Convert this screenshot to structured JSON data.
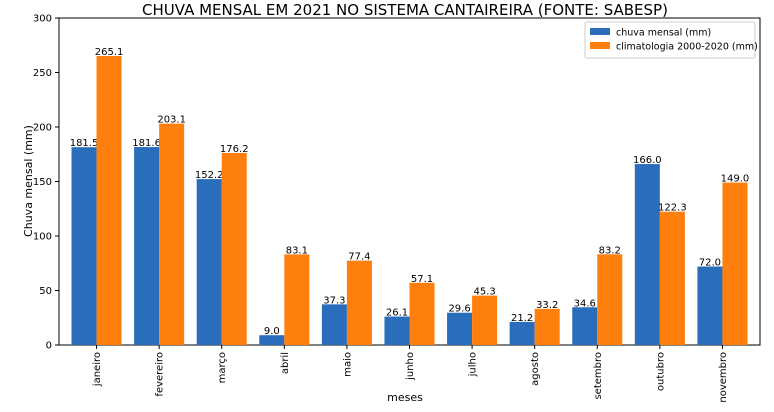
{
  "chart_data": {
    "type": "bar",
    "title": "CHUVA MENSAL EM 2021 NO SISTEMA CANTAIREIRA (FONTE: SABESP)",
    "xlabel": "meses",
    "ylabel": "Chuva mensal (mm)",
    "ylim": [
      0,
      300
    ],
    "yticks": [
      0,
      50,
      100,
      150,
      200,
      250,
      300
    ],
    "categories": [
      "janeiro",
      "fevereiro",
      "março",
      "abril",
      "maio",
      "junho",
      "julho",
      "agosto",
      "setembro",
      "outubro",
      "novembro"
    ],
    "series": [
      {
        "name": "chuva mensal (mm)",
        "color": "#2a6ebb",
        "values": [
          181.5,
          181.6,
          152.2,
          9.0,
          37.3,
          26.1,
          29.6,
          21.2,
          34.6,
          166.0,
          72.0
        ],
        "labels": [
          "181.5",
          "181.6",
          "152.2",
          "9.0",
          "37.3",
          "26.1",
          "29.6",
          "21.2",
          "34.6",
          "166.0",
          "72.0"
        ]
      },
      {
        "name": "climatologia 2000-2020 (mm)",
        "color": "#ff7f0e",
        "values": [
          265.1,
          203.1,
          176.2,
          83.1,
          77.4,
          57.1,
          45.3,
          33.2,
          83.2,
          122.3,
          149.0
        ],
        "labels": [
          "265.1",
          "203.1",
          "176.2",
          "83.1",
          "77.4",
          "57.1",
          "45.3",
          "33.2",
          "83.2",
          "122.3",
          "149.0"
        ]
      }
    ],
    "legend_position": "top-right",
    "grid": false
  }
}
